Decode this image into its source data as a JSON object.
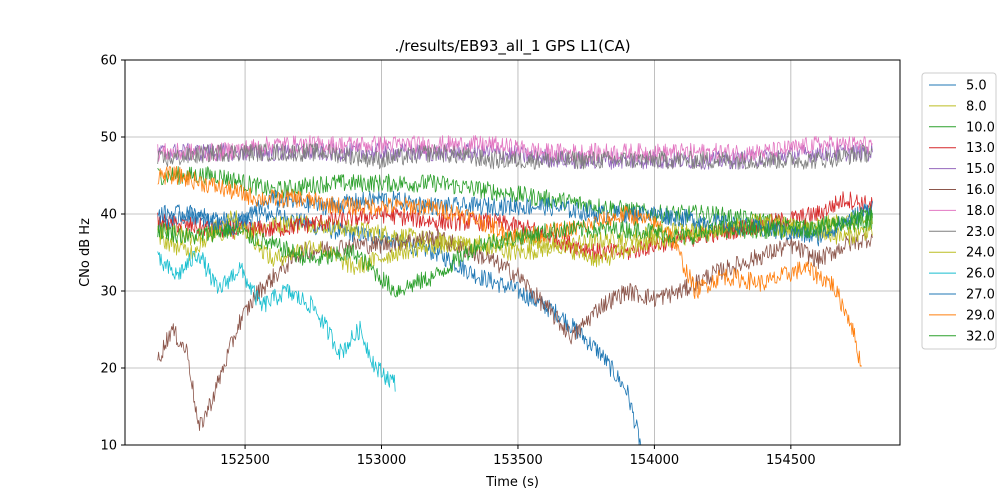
{
  "chart_data": {
    "type": "line",
    "title": "./results/EB93_all_1 GPS L1(CA)",
    "xlabel": "Time (s)",
    "ylabel": "CNo dB Hz",
    "xlim": [
      152060,
      154900
    ],
    "ylim": [
      10,
      60
    ],
    "xticks": [
      152500,
      153000,
      153500,
      154000,
      154500
    ],
    "yticks": [
      10,
      20,
      30,
      40,
      50,
      60
    ],
    "grid": true,
    "legend_position": "right, outside top",
    "series": [
      {
        "name": "5.0",
        "color": "#1f77b4",
        "x": [
          152180,
          152300,
          152450,
          152600,
          152800,
          153000,
          153200,
          153350,
          153500,
          153650,
          153800,
          153900,
          153950
        ],
        "y": [
          38,
          40,
          39,
          40,
          38,
          37,
          35,
          32,
          30,
          27,
          22,
          17,
          10
        ]
      },
      {
        "name": "8.0",
        "color": "#bcbd22",
        "x": [
          152180,
          152300,
          152500,
          152700,
          152900,
          153100,
          153300,
          153500,
          153700,
          153900,
          154100,
          154300,
          154500,
          154700,
          154800
        ],
        "y": [
          38,
          37,
          38,
          39,
          38,
          37,
          36,
          35,
          36,
          37,
          38,
          38,
          38,
          39,
          39
        ]
      },
      {
        "name": "10.0",
        "color": "#2ca02c",
        "x": [
          152180,
          152400,
          152600,
          152800,
          153000,
          153200,
          153400,
          153600,
          153800,
          154000,
          154200,
          154400,
          154600,
          154800
        ],
        "y": [
          45,
          45,
          43,
          44,
          44,
          44,
          43,
          42,
          41,
          40,
          40,
          39,
          38,
          39
        ]
      },
      {
        "name": "13.0",
        "color": "#d62728",
        "x": [
          152180,
          152400,
          152600,
          152800,
          153000,
          153200,
          153400,
          153550,
          153700,
          153800,
          153900,
          154000,
          154150,
          154300,
          154450,
          154600,
          154700,
          154800
        ],
        "y": [
          39,
          38,
          38,
          39,
          40,
          39,
          39,
          38,
          36,
          35,
          35,
          36,
          37,
          38,
          39,
          40,
          42,
          41
        ]
      },
      {
        "name": "15.0",
        "color": "#9467bd",
        "x": [
          152180,
          152500,
          152800,
          153100,
          153400,
          153700,
          154000,
          154300,
          154600,
          154800
        ],
        "y": [
          48,
          48,
          48,
          48,
          48,
          47,
          47,
          47,
          48,
          48
        ]
      },
      {
        "name": "16.0",
        "color": "#8c564b",
        "x": [
          152180,
          152230,
          152290,
          152330,
          152380,
          152420,
          152480,
          152550,
          152700,
          152900,
          153000,
          153200,
          153400,
          153500,
          153600,
          153700,
          153800,
          153900,
          154000,
          154100,
          154200,
          154350,
          154500,
          154600,
          154700,
          154800
        ],
        "y": [
          21,
          25,
          22,
          12,
          16,
          20,
          26,
          30,
          35,
          36,
          36,
          37,
          34,
          32,
          28,
          24,
          28,
          30,
          29,
          30,
          32,
          34,
          36,
          34,
          36,
          37
        ]
      },
      {
        "name": "18.0",
        "color": "#e377c2",
        "x": [
          152180,
          152400,
          152600,
          152800,
          153000,
          153200,
          153400,
          153600,
          153800,
          154000,
          154200,
          154400,
          154600,
          154800
        ],
        "y": [
          48,
          48,
          49,
          49,
          49,
          49,
          49,
          48,
          48,
          48,
          48,
          48,
          49,
          49
        ]
      },
      {
        "name": "23.0",
        "color": "#7f7f7f",
        "x": [
          152180,
          152400,
          152600,
          152800,
          153000,
          153200,
          153400,
          153600,
          153800,
          154000,
          154200,
          154400,
          154600,
          154800
        ],
        "y": [
          47,
          48,
          48,
          48,
          47,
          48,
          47,
          47,
          47,
          47,
          47,
          47,
          47,
          48
        ]
      },
      {
        "name": "24.0",
        "color": "#bcbd22",
        "x": [
          152180,
          152300,
          152450,
          152600,
          152750,
          152900,
          153050,
          153200,
          153350,
          153500,
          153650,
          153800,
          153950,
          154100,
          154250,
          154400,
          154550,
          154700,
          154800
        ],
        "y": [
          37,
          35,
          40,
          34,
          36,
          33,
          35,
          36,
          36,
          37,
          36,
          34,
          36,
          37,
          38,
          39,
          38,
          37,
          38
        ]
      },
      {
        "name": "26.0",
        "color": "#17becf",
        "x": [
          152180,
          152250,
          152330,
          152400,
          152480,
          152560,
          152650,
          152750,
          152850,
          152920,
          152980,
          153050
        ],
        "y": [
          34,
          32,
          35,
          30,
          33,
          28,
          30,
          28,
          22,
          25,
          20,
          18
        ]
      },
      {
        "name": "27.0",
        "color": "#1f77b4",
        "x": [
          152180,
          152300,
          152450,
          152600,
          152800,
          153000,
          153200,
          153400,
          153600,
          153800,
          154000,
          154200,
          154400,
          154600,
          154800
        ],
        "y": [
          40,
          40,
          38,
          42,
          41,
          42,
          41,
          41,
          41,
          40,
          40,
          39,
          38,
          37,
          41
        ]
      },
      {
        "name": "29.0",
        "color": "#ff7f0e",
        "x": [
          152180,
          152250,
          152350,
          152450,
          152550,
          152700,
          152850,
          153000,
          153150,
          153300,
          153500,
          153700,
          153900,
          154050,
          154150,
          154250,
          154400,
          154550,
          154650,
          154720,
          154760
        ],
        "y": [
          45,
          45,
          44,
          43,
          42,
          42,
          41,
          41,
          41,
          40,
          37,
          38,
          40,
          38,
          30,
          32,
          31,
          33,
          31,
          26,
          20
        ]
      },
      {
        "name": "32.0",
        "color": "#2ca02c",
        "x": [
          152180,
          152300,
          152450,
          152600,
          152750,
          152900,
          153050,
          153200,
          153350,
          153500,
          153650,
          153800,
          153950,
          154100,
          154250,
          154400,
          154550,
          154700,
          154800
        ],
        "y": [
          38,
          37,
          38,
          36,
          34,
          35,
          30,
          32,
          36,
          37,
          38,
          38,
          38,
          37,
          38,
          38,
          38,
          39,
          40
        ]
      }
    ]
  }
}
